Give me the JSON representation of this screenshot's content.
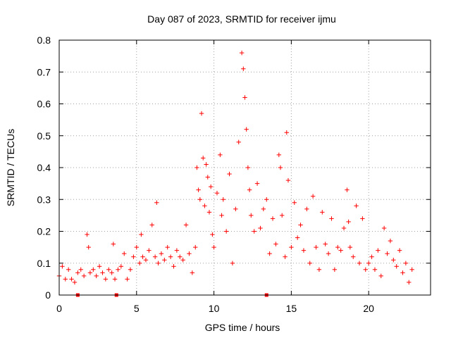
{
  "chart_data": {
    "type": "scatter",
    "title": "Day 087 of 2023, SRMTID for receiver ijmu",
    "xlabel": "GPS time / hours",
    "ylabel": "SRMTID / TECUs",
    "xlim": [
      0,
      24
    ],
    "ylim": [
      0,
      0.8
    ],
    "xticks": [
      0,
      5,
      10,
      15,
      20
    ],
    "yticks": [
      0,
      0.1,
      0.2,
      0.3,
      0.4,
      0.5,
      0.6,
      0.7,
      0.8
    ],
    "xtick_labels": [
      "0",
      "5",
      "10",
      "15",
      "20"
    ],
    "ytick_labels": [
      "0",
      "0.1",
      "0.2",
      "0.3",
      "0.4",
      "0.5",
      "0.6",
      "0.7",
      "0.8"
    ],
    "grid": true,
    "marker": "+",
    "color": "#ff0000",
    "series": [
      {
        "name": "SRMTID",
        "x": [
          0.0,
          0.2,
          0.4,
          0.6,
          0.8,
          1.0,
          1.2,
          1.4,
          1.6,
          1.8,
          1.9,
          2.0,
          2.2,
          2.4,
          2.6,
          2.8,
          3.0,
          3.2,
          3.4,
          3.5,
          3.6,
          3.8,
          4.0,
          4.2,
          4.4,
          4.6,
          4.8,
          5.0,
          5.2,
          5.3,
          5.4,
          5.6,
          5.8,
          6.0,
          6.2,
          6.3,
          6.4,
          6.6,
          6.8,
          7.0,
          7.2,
          7.4,
          7.6,
          7.8,
          8.0,
          8.2,
          8.4,
          8.6,
          8.8,
          8.9,
          9.0,
          9.1,
          9.2,
          9.3,
          9.4,
          9.5,
          9.6,
          9.7,
          9.8,
          9.9,
          10.0,
          10.2,
          10.4,
          10.5,
          10.6,
          10.8,
          11.0,
          11.2,
          11.4,
          11.6,
          11.8,
          11.9,
          12.0,
          12.1,
          12.2,
          12.3,
          12.4,
          12.6,
          12.8,
          13.0,
          13.2,
          13.4,
          13.6,
          13.8,
          14.0,
          14.2,
          14.3,
          14.4,
          14.6,
          14.7,
          14.8,
          15.0,
          15.2,
          15.4,
          15.6,
          15.8,
          16.0,
          16.2,
          16.4,
          16.6,
          16.8,
          17.0,
          17.2,
          17.4,
          17.6,
          17.8,
          18.0,
          18.2,
          18.4,
          18.6,
          18.7,
          18.8,
          19.0,
          19.2,
          19.4,
          19.6,
          19.8,
          20.0,
          20.2,
          20.4,
          20.6,
          20.8,
          21.0,
          21.2,
          21.4,
          21.6,
          21.8,
          22.0,
          22.2,
          22.4,
          22.6,
          22.8
        ],
        "y": [
          0.06,
          0.09,
          0.05,
          0.08,
          0.05,
          0.04,
          0.07,
          0.08,
          0.06,
          0.19,
          0.15,
          0.07,
          0.08,
          0.06,
          0.09,
          0.07,
          0.05,
          0.08,
          0.07,
          0.16,
          0.05,
          0.08,
          0.09,
          0.13,
          0.05,
          0.08,
          0.12,
          0.15,
          0.1,
          0.19,
          0.12,
          0.11,
          0.14,
          0.22,
          0.12,
          0.29,
          0.1,
          0.13,
          0.11,
          0.15,
          0.12,
          0.09,
          0.14,
          0.12,
          0.11,
          0.22,
          0.13,
          0.07,
          0.15,
          0.4,
          0.33,
          0.3,
          0.57,
          0.43,
          0.28,
          0.41,
          0.37,
          0.26,
          0.34,
          0.19,
          0.15,
          0.32,
          0.44,
          0.25,
          0.3,
          0.2,
          0.38,
          0.1,
          0.27,
          0.48,
          0.76,
          0.71,
          0.62,
          0.52,
          0.4,
          0.33,
          0.25,
          0.2,
          0.35,
          0.21,
          0.27,
          0.3,
          0.13,
          0.24,
          0.16,
          0.44,
          0.4,
          0.25,
          0.12,
          0.51,
          0.36,
          0.15,
          0.29,
          0.18,
          0.22,
          0.14,
          0.27,
          0.1,
          0.31,
          0.15,
          0.08,
          0.26,
          0.16,
          0.13,
          0.24,
          0.08,
          0.15,
          0.14,
          0.21,
          0.33,
          0.23,
          0.15,
          0.12,
          0.28,
          0.1,
          0.24,
          0.08,
          0.1,
          0.12,
          0.08,
          0.14,
          0.06,
          0.21,
          0.13,
          0.17,
          0.11,
          0.09,
          0.14,
          0.07,
          0.1,
          0.04,
          0.08
        ],
        "markers_on_axis": [
          1.2,
          3.7,
          13.4
        ]
      }
    ]
  }
}
